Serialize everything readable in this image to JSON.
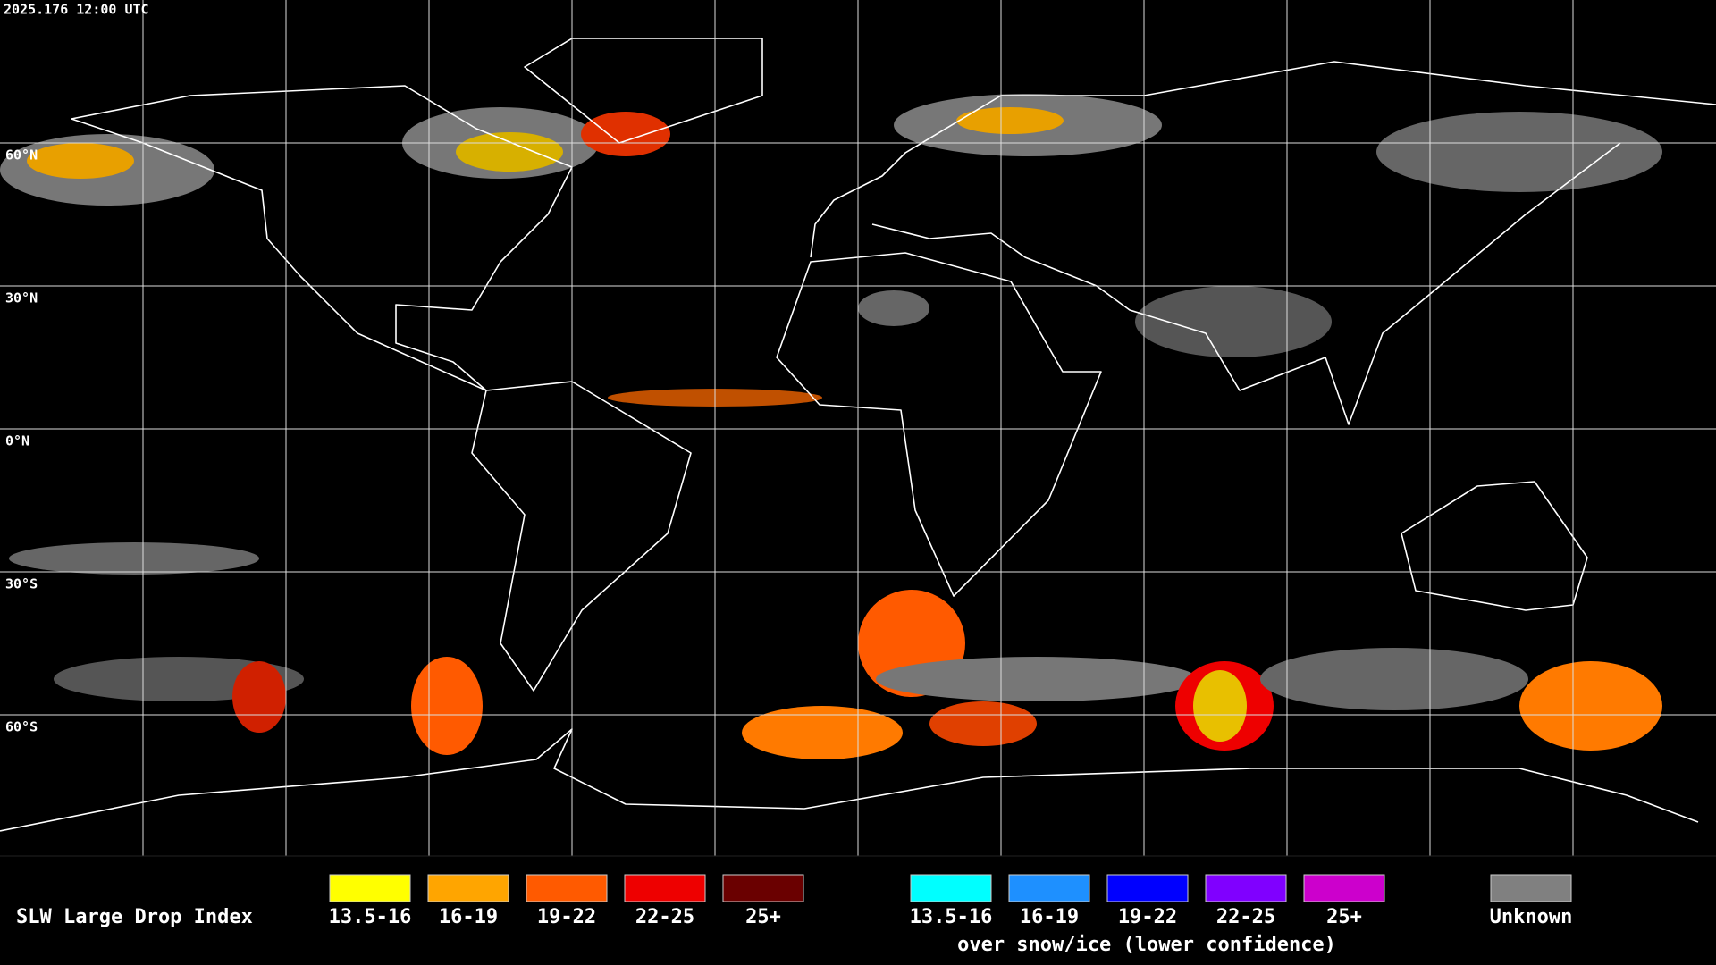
{
  "timestamp": "2025.176 12:00 UTC",
  "latitude_labels": [
    "60°N",
    "30°N",
    "0°N",
    "30°S",
    "60°S"
  ],
  "legend": {
    "title": "SLW Large Drop Index",
    "items": [
      {
        "label": "13.5-16",
        "color": "#ffff00"
      },
      {
        "label": "16-19",
        "color": "#ffa500"
      },
      {
        "label": "19-22",
        "color": "#ff5a00"
      },
      {
        "label": "22-25",
        "color": "#ee0000"
      },
      {
        "label": "25+",
        "color": "#6a0000"
      }
    ],
    "snow_items": [
      {
        "label": "13.5-16",
        "color": "#00ffff"
      },
      {
        "label": "16-19",
        "color": "#1e90ff"
      },
      {
        "label": "19-22",
        "color": "#0000ff"
      },
      {
        "label": "22-25",
        "color": "#8000ff"
      },
      {
        "label": "25+",
        "color": "#cc00cc"
      }
    ],
    "snow_caption": "over snow/ice (lower confidence)",
    "unknown": {
      "label": "Unknown",
      "color": "#808080"
    }
  }
}
